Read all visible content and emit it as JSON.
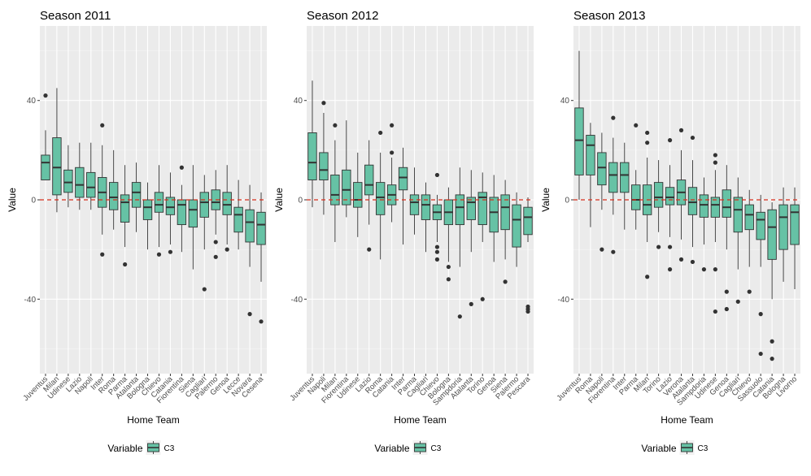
{
  "colors": {
    "panel_bg": "#ebebeb",
    "grid_major": "#ffffff",
    "box_fill": "#66c2a5",
    "box_stroke": "#333333",
    "zero_line": "#d7301f",
    "axis_text": "#4d4d4d"
  },
  "legend": {
    "title": "Variable",
    "key_label": "C3"
  },
  "chart_data": [
    {
      "type": "boxplot",
      "title": "Season 2011",
      "xlabel": "Home Team",
      "ylabel": "Value",
      "ylim": [
        -70,
        70
      ],
      "yticks": [
        -40,
        0,
        40
      ],
      "reference_line": 0,
      "categories": [
        "Juventus",
        "Milan",
        "Udinese",
        "Lazio",
        "Napoli",
        "Inter",
        "Roma",
        "Parma",
        "Atalanta",
        "Bologna",
        "Chievo",
        "Catania",
        "Fiorentina",
        "Siena",
        "Cagliari",
        "Palermo",
        "Genoa",
        "Lecce",
        "Novara",
        "Cesena"
      ],
      "boxes": [
        {
          "min": 8,
          "q1": 8,
          "median": 15,
          "q3": 18,
          "max": 28,
          "outliers": [
            42
          ]
        },
        {
          "min": -5,
          "q1": 2,
          "median": 13,
          "q3": 25,
          "max": 45,
          "outliers": []
        },
        {
          "min": -3,
          "q1": 3,
          "median": 7,
          "q3": 12,
          "max": 22,
          "outliers": []
        },
        {
          "min": -4,
          "q1": 1,
          "median": 6,
          "q3": 13,
          "max": 23,
          "outliers": []
        },
        {
          "min": -4,
          "q1": 1,
          "median": 5,
          "q3": 11,
          "max": 23,
          "outliers": []
        },
        {
          "min": -14,
          "q1": -3,
          "median": 3,
          "q3": 9,
          "max": 22,
          "outliers": [
            30,
            -22
          ]
        },
        {
          "min": -12,
          "q1": -4,
          "median": 1,
          "q3": 7,
          "max": 20,
          "outliers": []
        },
        {
          "min": -19,
          "q1": -9,
          "median": -1,
          "q3": 2,
          "max": 14,
          "outliers": [
            -26
          ]
        },
        {
          "min": -13,
          "q1": -3,
          "median": 3,
          "q3": 7,
          "max": 15,
          "outliers": []
        },
        {
          "min": -20,
          "q1": -8,
          "median": -3,
          "q3": 0,
          "max": 7,
          "outliers": []
        },
        {
          "min": -19,
          "q1": -5,
          "median": -2,
          "q3": 3,
          "max": 14,
          "outliers": [
            -22
          ]
        },
        {
          "min": -18,
          "q1": -6,
          "median": -3,
          "q3": 1,
          "max": 11,
          "outliers": [
            -21
          ]
        },
        {
          "min": -21,
          "q1": -10,
          "median": -2,
          "q3": 0,
          "max": 6,
          "outliers": [
            13
          ]
        },
        {
          "min": -28,
          "q1": -11,
          "median": -4,
          "q3": 0,
          "max": 14,
          "outliers": []
        },
        {
          "min": -20,
          "q1": -7,
          "median": -1,
          "q3": 3,
          "max": 10,
          "outliers": [
            -36
          ]
        },
        {
          "min": -14,
          "q1": -4,
          "median": -1,
          "q3": 4,
          "max": 12,
          "outliers": [
            -17,
            -23
          ]
        },
        {
          "min": -18,
          "q1": -6,
          "median": -2,
          "q3": 3,
          "max": 14,
          "outliers": [
            -20
          ]
        },
        {
          "min": -20,
          "q1": -13,
          "median": -6,
          "q3": -3,
          "max": 8,
          "outliers": []
        },
        {
          "min": -27,
          "q1": -17,
          "median": -9,
          "q3": -4,
          "max": 6,
          "outliers": [
            -46
          ]
        },
        {
          "min": -33,
          "q1": -18,
          "median": -10,
          "q3": -5,
          "max": 3,
          "outliers": [
            -49
          ]
        }
      ]
    },
    {
      "type": "boxplot",
      "title": "Season 2012",
      "xlabel": "Home Team",
      "ylabel": "Value",
      "ylim": [
        -70,
        70
      ],
      "yticks": [
        -40,
        0,
        40
      ],
      "reference_line": 0,
      "categories": [
        "Juventus",
        "Napoli",
        "Milan",
        "Fiorentina",
        "Udinese",
        "Lazio",
        "Roma",
        "Catania",
        "Inter",
        "Parma",
        "Cagliari",
        "Chievo",
        "Bologna",
        "Sampdoria",
        "Atalanta",
        "Torino",
        "Genoa",
        "Siena",
        "Palermo",
        "Pescara"
      ],
      "boxes": [
        {
          "min": -3,
          "q1": 8,
          "median": 15,
          "q3": 27,
          "max": 48,
          "outliers": []
        },
        {
          "min": -6,
          "q1": 8,
          "median": 12,
          "q3": 19,
          "max": 35,
          "outliers": [
            39
          ]
        },
        {
          "min": -17,
          "q1": -2,
          "median": 2,
          "q3": 10,
          "max": 24,
          "outliers": [
            30
          ]
        },
        {
          "min": -7,
          "q1": -2,
          "median": 4,
          "q3": 12,
          "max": 32,
          "outliers": []
        },
        {
          "min": -15,
          "q1": -3,
          "median": 0,
          "q3": 7,
          "max": 19,
          "outliers": []
        },
        {
          "min": -10,
          "q1": 2,
          "median": 6,
          "q3": 14,
          "max": 24,
          "outliers": [
            -20
          ]
        },
        {
          "min": -24,
          "q1": -6,
          "median": 1,
          "q3": 7,
          "max": 19,
          "outliers": [
            27
          ]
        },
        {
          "min": -9,
          "q1": -2,
          "median": 2,
          "q3": 6,
          "max": 17,
          "outliers": [
            30,
            19
          ]
        },
        {
          "min": -18,
          "q1": 4,
          "median": 9,
          "q3": 13,
          "max": 21,
          "outliers": []
        },
        {
          "min": -14,
          "q1": -6,
          "median": -1,
          "q3": 2,
          "max": 13,
          "outliers": []
        },
        {
          "min": -21,
          "q1": -8,
          "median": -2,
          "q3": 2,
          "max": 7,
          "outliers": []
        },
        {
          "min": -17,
          "q1": -8,
          "median": -5,
          "q3": -2,
          "max": 2,
          "outliers": [
            10,
            -19,
            -21,
            -24
          ]
        },
        {
          "min": -25,
          "q1": -10,
          "median": -5,
          "q3": 0,
          "max": 5,
          "outliers": [
            -27,
            -32
          ]
        },
        {
          "min": -27,
          "q1": -10,
          "median": -3,
          "q3": 2,
          "max": 13,
          "outliers": [
            -47
          ]
        },
        {
          "min": -21,
          "q1": -8,
          "median": -1,
          "q3": 1,
          "max": 12,
          "outliers": [
            -42
          ]
        },
        {
          "min": -17,
          "q1": -10,
          "median": 1,
          "q3": 3,
          "max": 11,
          "outliers": [
            -40
          ]
        },
        {
          "min": -25,
          "q1": -13,
          "median": -5,
          "q3": 1,
          "max": 10,
          "outliers": []
        },
        {
          "min": -24,
          "q1": -12,
          "median": -3,
          "q3": 2,
          "max": 8,
          "outliers": [
            -33
          ]
        },
        {
          "min": -27,
          "q1": -19,
          "median": -8,
          "q3": -2,
          "max": 3,
          "outliers": []
        },
        {
          "min": -17,
          "q1": -14,
          "median": -7,
          "q3": -3,
          "max": 1,
          "outliers": [
            -43,
            -44,
            -45
          ]
        }
      ]
    },
    {
      "type": "boxplot",
      "title": "Season 2013",
      "xlabel": "Home Team",
      "ylabel": "Value",
      "ylim": [
        -70,
        70
      ],
      "yticks": [
        -40,
        0,
        40
      ],
      "reference_line": 0,
      "categories": [
        "Juventus",
        "Roma",
        "Napoli",
        "Fiorentina",
        "Inter",
        "Parma",
        "Milan",
        "Torino",
        "Lazio",
        "Verona",
        "Atalanta",
        "Sampdoria",
        "Udinese",
        "Genoa",
        "Cagliari",
        "Chievo",
        "Sassuolo",
        "Catania",
        "Bologna",
        "Livorno"
      ],
      "boxes": [
        {
          "min": 0,
          "q1": 10,
          "median": 24,
          "q3": 37,
          "max": 60,
          "outliers": []
        },
        {
          "min": -11,
          "q1": 10,
          "median": 22,
          "q3": 26,
          "max": 31,
          "outliers": []
        },
        {
          "min": -4,
          "q1": 6,
          "median": 13,
          "q3": 19,
          "max": 27,
          "outliers": [
            -20
          ]
        },
        {
          "min": -6,
          "q1": 3,
          "median": 10,
          "q3": 15,
          "max": 25,
          "outliers": [
            33,
            -21
          ]
        },
        {
          "min": -12,
          "q1": 3,
          "median": 10,
          "q3": 15,
          "max": 23,
          "outliers": []
        },
        {
          "min": -12,
          "q1": -4,
          "median": 0,
          "q3": 6,
          "max": 12,
          "outliers": [
            30
          ]
        },
        {
          "min": -17,
          "q1": -6,
          "median": -2,
          "q3": 6,
          "max": 17,
          "outliers": [
            27,
            23,
            -31
          ]
        },
        {
          "min": -13,
          "q1": -3,
          "median": 1,
          "q3": 7,
          "max": 16,
          "outliers": [
            -19
          ]
        },
        {
          "min": -15,
          "q1": -2,
          "median": 1,
          "q3": 5,
          "max": 14,
          "outliers": [
            24,
            -19,
            -28
          ]
        },
        {
          "min": -16,
          "q1": -2,
          "median": 3,
          "q3": 8,
          "max": 20,
          "outliers": [
            28,
            -24
          ]
        },
        {
          "min": -19,
          "q1": -6,
          "median": -1,
          "q3": 5,
          "max": 16,
          "outliers": [
            25,
            -25
          ]
        },
        {
          "min": -18,
          "q1": -7,
          "median": -2,
          "q3": 2,
          "max": 9,
          "outliers": [
            -28
          ]
        },
        {
          "min": -17,
          "q1": -7,
          "median": -2,
          "q3": 1,
          "max": 12,
          "outliers": [
            18,
            15,
            -28,
            -45
          ]
        },
        {
          "min": -20,
          "q1": -7,
          "median": -3,
          "q3": 4,
          "max": 14,
          "outliers": [
            -37,
            -44
          ]
        },
        {
          "min": -28,
          "q1": -13,
          "median": -4,
          "q3": 1,
          "max": 9,
          "outliers": [
            -41
          ]
        },
        {
          "min": -27,
          "q1": -12,
          "median": -6,
          "q3": -2,
          "max": 4,
          "outliers": [
            -37
          ]
        },
        {
          "min": -27,
          "q1": -16,
          "median": -8,
          "q3": -5,
          "max": 2,
          "outliers": [
            -46,
            -62
          ]
        },
        {
          "min": -40,
          "q1": -24,
          "median": -11,
          "q3": -4,
          "max": -1,
          "outliers": [
            -57,
            -64
          ]
        },
        {
          "min": -33,
          "q1": -20,
          "median": -7,
          "q3": -2,
          "max": 5,
          "outliers": []
        },
        {
          "min": -36,
          "q1": -18,
          "median": -5,
          "q3": -2,
          "max": 5,
          "outliers": []
        }
      ]
    }
  ]
}
